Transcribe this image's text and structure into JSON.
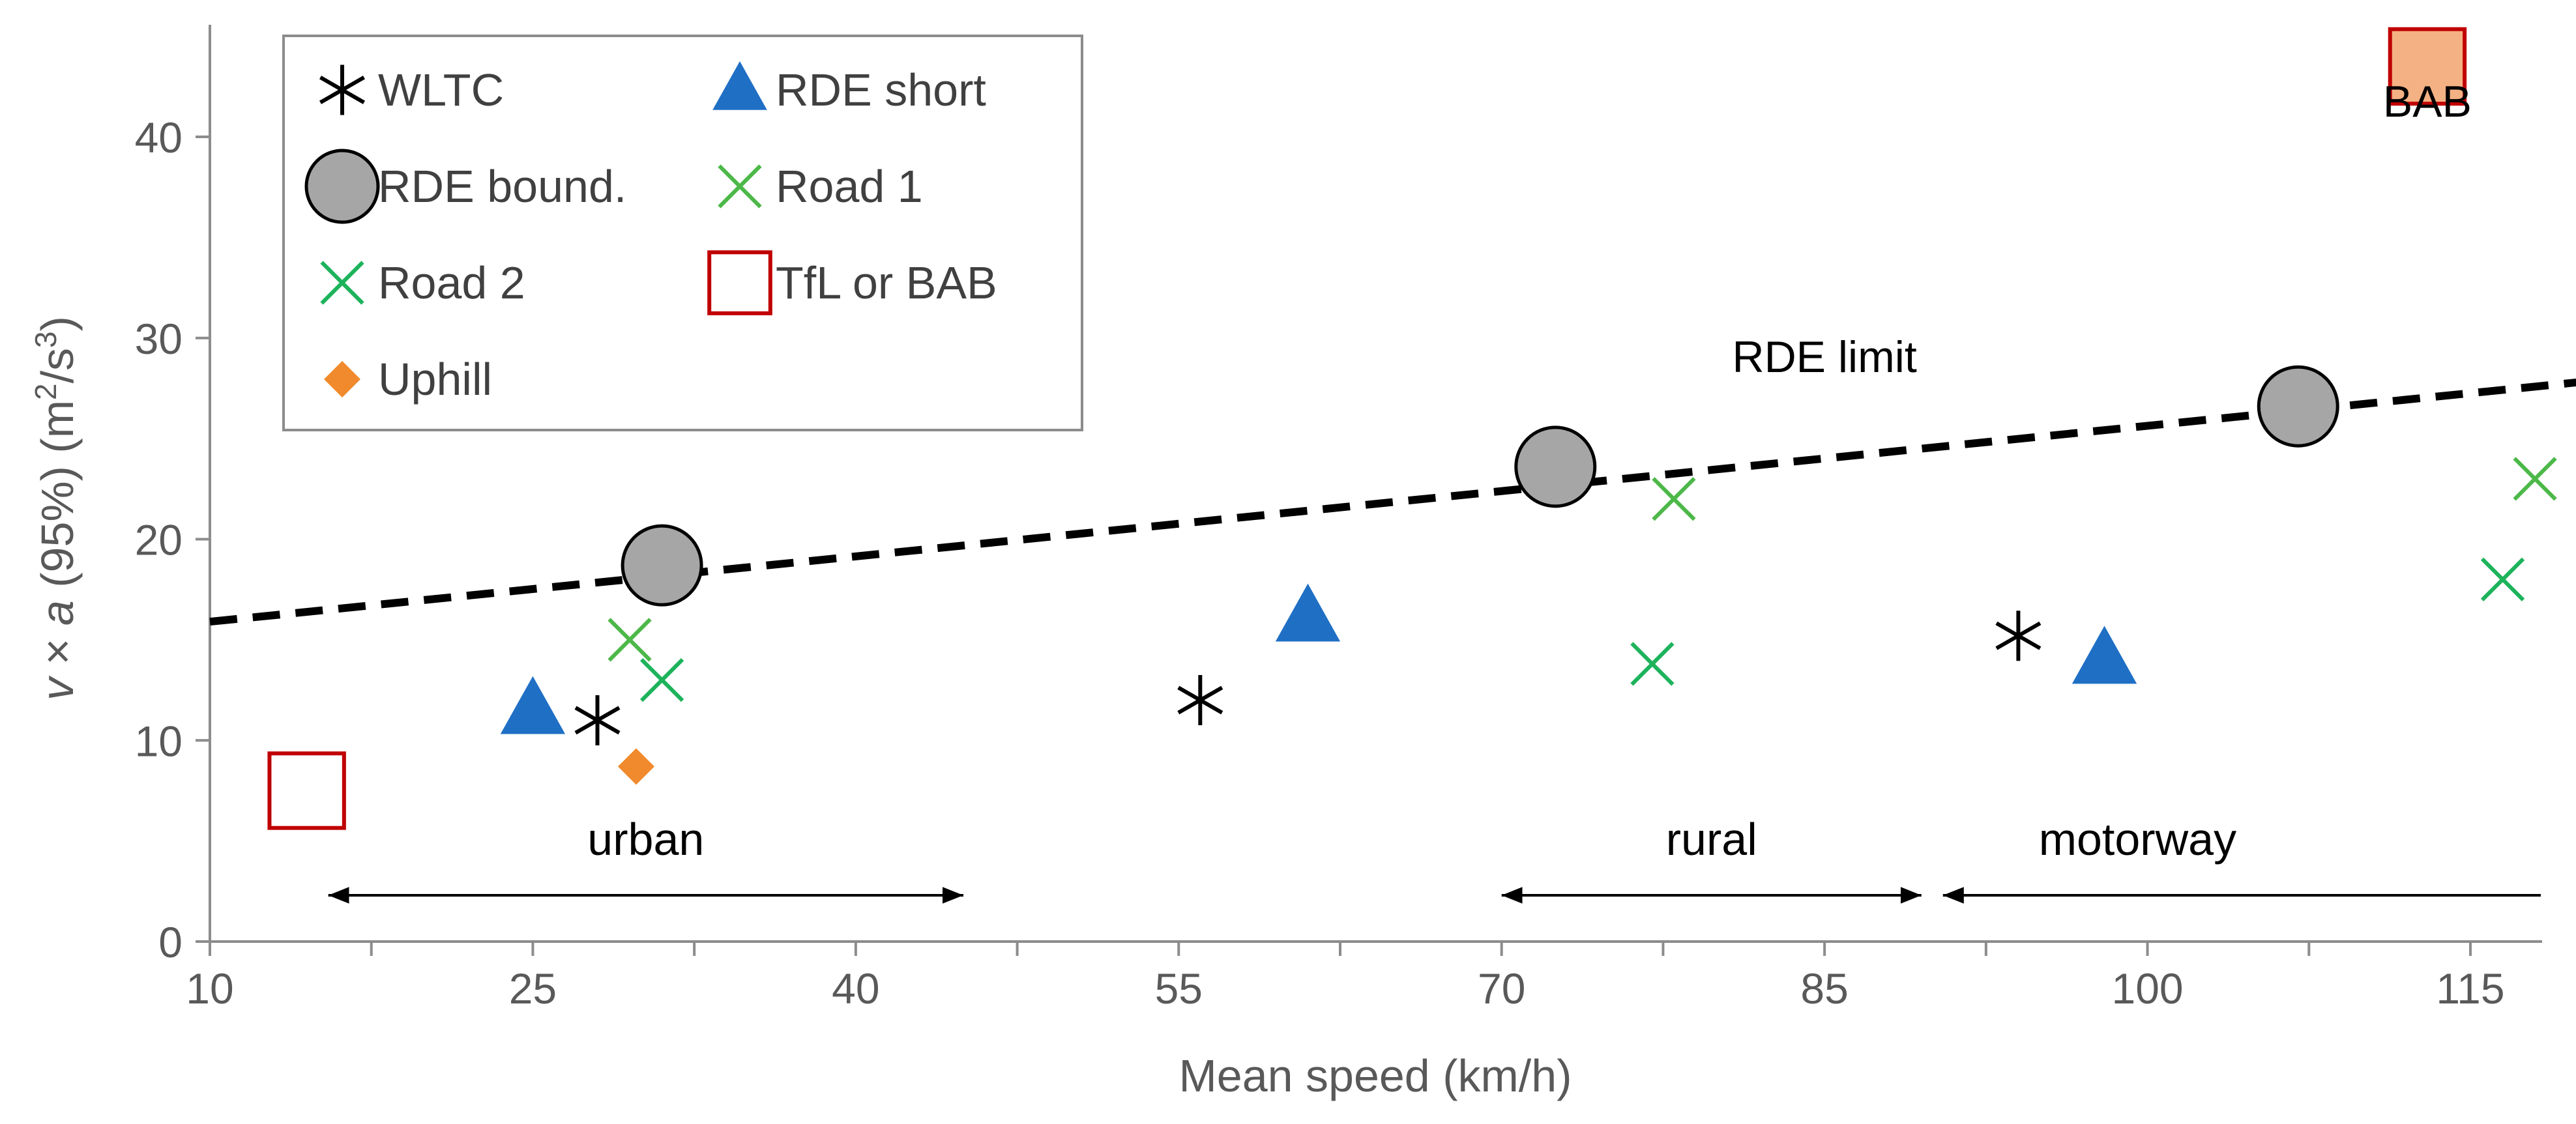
{
  "chart_data": {
    "type": "scatter",
    "title": "",
    "xlabel": "Mean speed (km/h)",
    "ylabel": {
      "v": "v",
      "times": " × ",
      "a": "a",
      "rest": " (95%) (m",
      "exp1": "2",
      "slash": "/s",
      "exp2": "3",
      "close": ")"
    },
    "xlim": [
      10,
      120
    ],
    "ylim": [
      0,
      45
    ],
    "x_ticks": [
      10,
      25,
      40,
      55,
      70,
      85,
      100,
      115
    ],
    "y_ticks": [
      0,
      10,
      20,
      30,
      40
    ],
    "grid": false,
    "legend_position": "top-left",
    "series": [
      {
        "name": "WLTC",
        "marker": "asterisk",
        "color": "#000000",
        "points": [
          [
            28,
            11
          ],
          [
            56,
            12
          ],
          [
            94,
            15.2
          ]
        ]
      },
      {
        "name": "RDE short",
        "marker": "triangle",
        "color": "#1f6fc5",
        "points": [
          [
            25,
            11.5
          ],
          [
            61,
            16.1
          ],
          [
            98,
            14
          ]
        ]
      },
      {
        "name": "RDE bound.",
        "marker": "circle",
        "color": "#000000",
        "fill": "#a6a6a6",
        "points": [
          [
            31,
            18.7
          ],
          [
            72.5,
            23.6
          ],
          [
            107,
            26.6
          ]
        ]
      },
      {
        "name": "Road 1",
        "marker": "x",
        "color": "#4cb848",
        "points": [
          [
            29.5,
            15
          ],
          [
            78,
            22
          ],
          [
            118,
            23
          ]
        ]
      },
      {
        "name": "Road 2",
        "marker": "x",
        "color": "#1db35b",
        "points": [
          [
            31,
            13
          ],
          [
            77,
            13.8
          ],
          [
            116.5,
            18
          ]
        ]
      },
      {
        "name": "TfL or BAB",
        "marker": "square",
        "color": "#c00000",
        "fill": "#ffffff",
        "points": [
          [
            14.5,
            7.5
          ]
        ]
      },
      {
        "name": "Uphill",
        "marker": "diamond",
        "color": "#f08a2c",
        "points": [
          [
            29.8,
            8.7
          ]
        ]
      },
      {
        "name": "BAB",
        "marker": "square",
        "color": "#c00000",
        "fill": "#f4b183",
        "in_legend": false,
        "points": [
          [
            113,
            43.5
          ]
        ]
      }
    ],
    "reference_line": {
      "name": "RDE limit",
      "points": [
        [
          10,
          15.9
        ],
        [
          120,
          27.8
        ]
      ],
      "style": "dashed",
      "color": "#000000"
    },
    "annotations": [
      {
        "text": "BAB",
        "x": 113,
        "y": 41
      },
      {
        "text": "RDE limit",
        "x": 85,
        "y": 28.3
      }
    ],
    "ranges": [
      {
        "label": "urban",
        "from": 15.5,
        "to": 45,
        "y": 2.3
      },
      {
        "label": "rural",
        "from": 70,
        "to": 89.5,
        "y": 2.3
      },
      {
        "label": "motorway",
        "from": 90.5,
        "to": 120,
        "y": 2.3
      }
    ]
  }
}
